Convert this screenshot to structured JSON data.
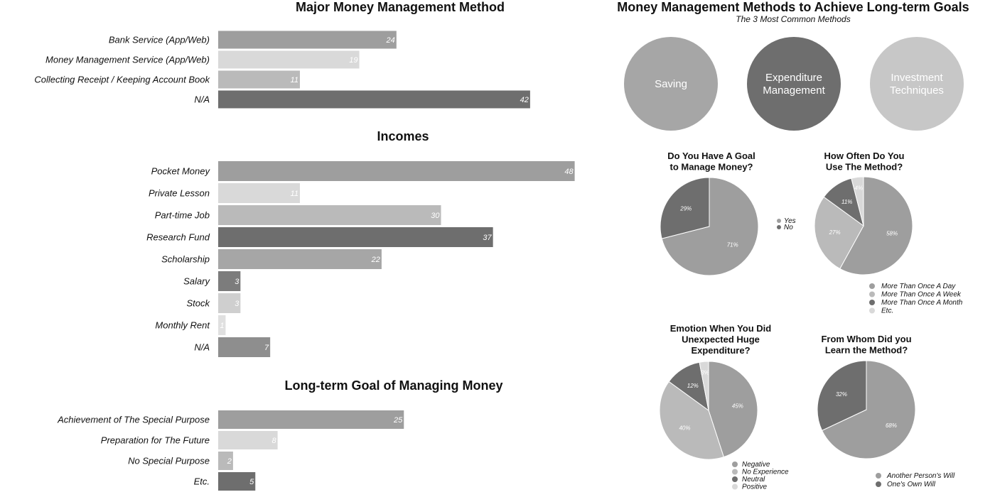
{
  "colors": {
    "c1": "#9e9e9e",
    "c2": "#d9d9d9",
    "c3": "#bababa",
    "c4": "#6e6e6e",
    "circle_saving": "#a6a6a6",
    "circle_expenditure": "#6e6e6e",
    "circle_investment": "#c7c7c7"
  },
  "right_header": {
    "title": "Money Management Methods to Achieve Long-term Goals",
    "subtitle": "The 3 Most Common Methods",
    "circles": [
      {
        "label_lines": [
          "Saving"
        ],
        "color": "#a6a6a6"
      },
      {
        "label_lines": [
          "Expenditure",
          "Management"
        ],
        "color": "#6e6e6e"
      },
      {
        "label_lines": [
          "Investment",
          "Techniques"
        ],
        "color": "#c7c7c7"
      }
    ]
  },
  "chart_data": [
    {
      "type": "bar",
      "orientation": "horizontal",
      "title": "Major Money Management Method",
      "categories": [
        "Bank Service (App/Web)",
        "Money Management Service (App/Web)",
        "Collecting Receipt / Keeping Account Book",
        "N/A"
      ],
      "values": [
        24,
        19,
        11,
        42
      ],
      "colors": [
        "#9e9e9e",
        "#d9d9d9",
        "#bababa",
        "#6e6e6e"
      ]
    },
    {
      "type": "bar",
      "orientation": "horizontal",
      "title": "Incomes",
      "categories": [
        "Pocket Money",
        "Private Lesson",
        "Part-time Job",
        "Research Fund",
        "Scholarship",
        "Salary",
        "Stock",
        "Monthly Rent",
        "N/A"
      ],
      "values": [
        48,
        11,
        30,
        37,
        22,
        3,
        3,
        1,
        7
      ],
      "colors": [
        "#9e9e9e",
        "#d9d9d9",
        "#bababa",
        "#6e6e6e",
        "#a6a6a6",
        "#7c7c7c",
        "#cfcfcf",
        "#e0e0e0",
        "#8e8e8e"
      ]
    },
    {
      "type": "bar",
      "orientation": "horizontal",
      "title": "Long-term Goal of Managing Money",
      "categories": [
        "Achievement of The Special Purpose",
        "Preparation for The Future",
        "No Special Purpose",
        "Etc."
      ],
      "values": [
        25,
        8,
        2,
        5
      ],
      "colors": [
        "#9e9e9e",
        "#d9d9d9",
        "#bababa",
        "#6e6e6e"
      ]
    },
    {
      "type": "pie",
      "title_lines": [
        "Do You Have A Goal",
        "to Manage Money?"
      ],
      "labels": [
        "Yes",
        "No"
      ],
      "values": [
        71,
        29
      ],
      "colors": [
        "#9e9e9e",
        "#6e6e6e"
      ],
      "legend": "right"
    },
    {
      "type": "pie",
      "title_lines": [
        "How Often Do You",
        "Use The Method?"
      ],
      "labels": [
        "More Than Once A Day",
        "More Than Once A Week",
        "More Than Once A Month",
        "Etc."
      ],
      "values": [
        58,
        27,
        11,
        4
      ],
      "colors": [
        "#9e9e9e",
        "#bababa",
        "#6e6e6e",
        "#d9d9d9"
      ],
      "legend": "bottom"
    },
    {
      "type": "pie",
      "title_lines": [
        "Emotion When You Did",
        "Unexpected Huge",
        "Expenditure?"
      ],
      "labels": [
        "Negative",
        "No Experience",
        "Neutral",
        "Positive"
      ],
      "values": [
        45,
        40,
        12,
        3
      ],
      "colors": [
        "#9e9e9e",
        "#bababa",
        "#6e6e6e",
        "#d9d9d9"
      ],
      "legend": "bottom"
    },
    {
      "type": "pie",
      "title_lines": [
        "From Whom Did you",
        "Learn the Method?"
      ],
      "labels": [
        "Another Person's Will",
        "One's Own Will"
      ],
      "values": [
        68,
        32
      ],
      "colors": [
        "#9e9e9e",
        "#6e6e6e"
      ],
      "legend": "bottom"
    }
  ]
}
